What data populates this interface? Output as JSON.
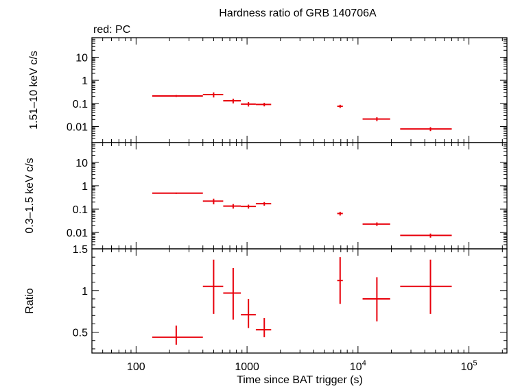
{
  "title": "Hardness ratio of GRB 140706A",
  "subtitle": "red: PC",
  "xlabel": "Time since BAT trigger (s)",
  "colors": {
    "data": "#e8000b",
    "axes": "#000000"
  },
  "chart_data": [
    {
      "type": "scatter",
      "panel": "hard",
      "ylabel": "1.51–10 keV c/s",
      "x_scale": "log",
      "xlim": [
        40,
        220000
      ],
      "y_scale": "log",
      "ylim": [
        0.002,
        70
      ],
      "ytick_labels": [
        "10",
        "1",
        "0.1",
        "0.01"
      ],
      "ytick_values": [
        10,
        1,
        0.1,
        0.01
      ],
      "series": [
        {
          "x": [
            230,
            500,
            750,
            1030,
            1430,
            6900,
            14800,
            45000
          ],
          "x_lo": [
            140,
            400,
            610,
            880,
            1200,
            6500,
            11000,
            24000
          ],
          "x_hi": [
            400,
            610,
            880,
            1200,
            1650,
            7300,
            19500,
            70000
          ],
          "y": [
            0.21,
            0.24,
            0.13,
            0.093,
            0.09,
            0.075,
            0.021,
            0.0078
          ],
          "y_err": [
            0.02,
            0.06,
            0.03,
            0.02,
            0.016,
            0.012,
            0.004,
            0.0015
          ]
        }
      ]
    },
    {
      "type": "scatter",
      "panel": "soft",
      "ylabel": "0.3–1.5 keV c/s",
      "x_scale": "log",
      "xlim": [
        40,
        220000
      ],
      "y_scale": "log",
      "ylim": [
        0.002,
        70
      ],
      "ytick_labels": [
        "10",
        "1",
        "0.1",
        "0.01"
      ],
      "ytick_values": [
        10,
        1,
        0.1,
        0.01
      ],
      "series": [
        {
          "x": [
            230,
            500,
            750,
            1030,
            1430,
            6900,
            14800,
            45000
          ],
          "x_lo": [
            140,
            400,
            610,
            880,
            1200,
            6500,
            11000,
            24000
          ],
          "x_hi": [
            400,
            610,
            880,
            1200,
            1650,
            7300,
            19500,
            70000
          ],
          "y": [
            0.48,
            0.22,
            0.135,
            0.13,
            0.17,
            0.065,
            0.023,
            0.0075
          ],
          "y_err": [
            0.03,
            0.06,
            0.03,
            0.025,
            0.03,
            0.012,
            0.004,
            0.0015
          ]
        }
      ]
    },
    {
      "type": "scatter",
      "panel": "ratio",
      "ylabel": "Ratio",
      "x_scale": "log",
      "xlim": [
        40,
        220000
      ],
      "y_scale": "linear",
      "ylim": [
        0.25,
        1.5
      ],
      "ytick_labels": [
        "1.5",
        "1",
        "0.5"
      ],
      "ytick_values": [
        1.5,
        1,
        0.5
      ],
      "xtick_values": [
        100,
        1000,
        10000,
        100000
      ],
      "xtick_labels": [
        {
          "base": "100",
          "exp": ""
        },
        {
          "base": "1000",
          "exp": ""
        },
        {
          "base": "10",
          "exp": "4"
        },
        {
          "base": "10",
          "exp": "5"
        }
      ],
      "series": [
        {
          "x": [
            230,
            500,
            750,
            1030,
            1430,
            6900,
            14800,
            45000
          ],
          "x_lo": [
            140,
            400,
            610,
            880,
            1200,
            6500,
            11000,
            24000
          ],
          "x_hi": [
            400,
            610,
            880,
            1200,
            1650,
            7300,
            19500,
            70000
          ],
          "y": [
            0.44,
            1.05,
            0.97,
            0.71,
            0.53,
            1.12,
            0.9,
            1.05
          ],
          "y_lo": [
            0.35,
            0.72,
            0.65,
            0.55,
            0.44,
            0.84,
            0.63,
            0.72
          ],
          "y_hi": [
            0.58,
            1.37,
            1.27,
            0.9,
            0.67,
            1.4,
            1.16,
            1.37
          ]
        }
      ]
    }
  ]
}
